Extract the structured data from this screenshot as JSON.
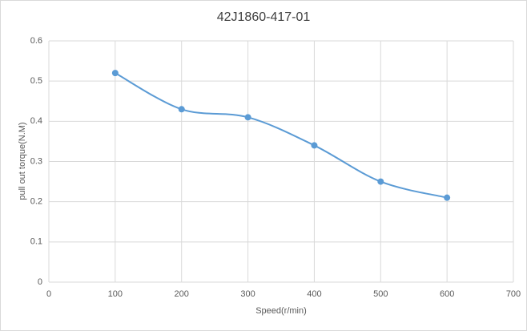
{
  "chart_data": {
    "type": "scatter",
    "title": "42J1860-417-01",
    "x_label": "Speed(r/min)",
    "y_label": "pull out torque(N.M)",
    "x": [
      100,
      200,
      300,
      400,
      500,
      600
    ],
    "series": [
      {
        "values": [
          0.52,
          0.43,
          0.41,
          0.34,
          0.25,
          0.21
        ],
        "color": "#5b9bd5"
      }
    ],
    "xlim": [
      0,
      700
    ],
    "xticks": [
      0,
      100,
      200,
      300,
      400,
      500,
      600,
      700
    ],
    "ylim": [
      0,
      0.6
    ],
    "yticks": [
      0,
      0.1,
      0.2,
      0.3,
      0.4,
      0.5,
      0.6
    ],
    "grid": true,
    "smooth": true
  }
}
